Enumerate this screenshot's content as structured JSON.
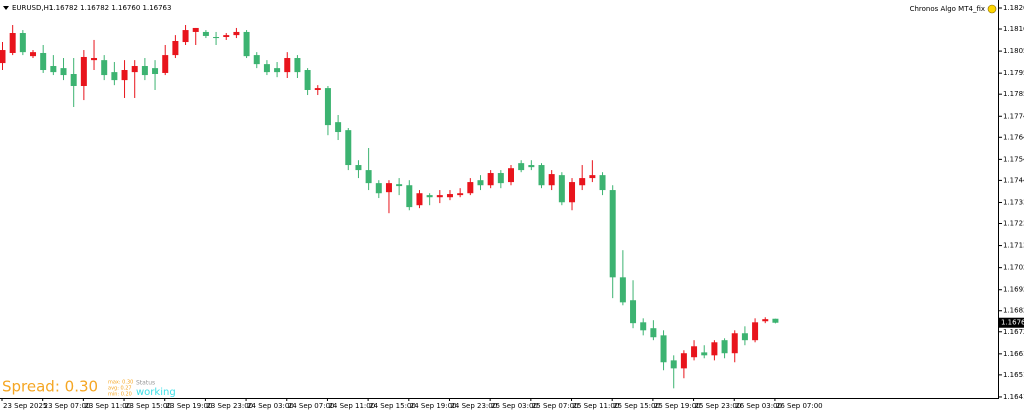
{
  "chart_data": {
    "type": "candlestick",
    "symbol": "EURUSD,H1",
    "ohlc_text": "1.16782 1.16782 1.16760 1.16763",
    "indicator": "Chronos Algo MT4_fix",
    "categories": [
      "23 Sep 2025",
      null,
      null,
      null,
      "23 Sep 07:00",
      null,
      null,
      null,
      "23 Sep 11:00",
      null,
      null,
      null,
      "23 Sep 15:00",
      null,
      null,
      null,
      "23 Sep 19:00",
      null,
      null,
      null,
      "23 Sep 23:00",
      null,
      null,
      null,
      "24 Sep 03:00",
      null,
      null,
      null,
      "24 Sep 07:00",
      null,
      null,
      null,
      "24 Sep 11:00",
      null,
      null,
      null,
      "24 Sep 15:00",
      null,
      null,
      null,
      "24 Sep 19:00",
      null,
      null,
      null,
      "24 Sep 23:00",
      null,
      null,
      null,
      "25 Sep 03:00",
      null,
      null,
      null,
      "25 Sep 07:00",
      null,
      null,
      null,
      "25 Sep 11:00",
      null,
      null,
      null,
      "25 Sep 15:00",
      null,
      null,
      null,
      "25 Sep 19:00",
      null,
      null,
      null,
      "25 Sep 23:00",
      null,
      null,
      null,
      "26 Sep 03:00",
      null,
      null,
      null,
      "26 Sep 07:00"
    ],
    "open": [
      1.17998,
      1.18046,
      1.18141,
      1.18031,
      1.18046,
      1.17984,
      1.17974,
      1.17946,
      1.17889,
      1.18012,
      1.18012,
      1.17955,
      1.17917,
      1.17955,
      1.17984,
      1.17974,
      1.17951,
      1.18036,
      1.18098,
      1.18146,
      1.18146,
      1.18122,
      1.18122,
      1.18131,
      1.18146,
      1.18036,
      1.17993,
      1.17974,
      1.17955,
      1.18022,
      1.17965,
      1.1787,
      1.17879,
      1.17717,
      1.17679,
      1.17513,
      1.17489,
      1.17427,
      1.17384,
      1.17422,
      1.17417,
      1.17322,
      1.1737,
      1.1736,
      1.1736,
      1.1737,
      1.17379,
      1.17441,
      1.17417,
      1.17475,
      1.17432,
      1.17522,
      1.17513,
      1.17513,
      1.17417,
      1.17465,
      1.17336,
      1.17417,
      1.17451,
      1.17465,
      1.17394,
      1.16979,
      1.1687,
      1.16765,
      1.16737,
      1.16703,
      1.16584,
      1.16546,
      1.16599,
      1.16622,
      1.16608,
      1.1668,
      1.16618,
      1.16713,
      1.1668,
      1.1677,
      1.16782
    ],
    "high": [
      1.18098,
      1.18179,
      1.18155,
      1.1806,
      1.18084,
      1.18036,
      1.18022,
      1.18022,
      1.1806,
      1.18108,
      1.18036,
      1.18003,
      1.18012,
      1.18012,
      1.18022,
      1.18012,
      1.18084,
      1.18131,
      1.18179,
      1.18165,
      1.18155,
      1.18146,
      1.18141,
      1.18165,
      1.18155,
      1.1805,
      1.18012,
      1.18003,
      1.1805,
      1.18036,
      1.17974,
      1.17893,
      1.17889,
      1.17751,
      1.17689,
      1.17536,
      1.17594,
      1.17441,
      1.17441,
      1.17451,
      1.17441,
      1.17394,
      1.17379,
      1.17394,
      1.17394,
      1.17403,
      1.17451,
      1.17465,
      1.17489,
      1.17489,
      1.17513,
      1.17536,
      1.17536,
      1.17522,
      1.17489,
      1.17479,
      1.17451,
      1.17513,
      1.17536,
      1.17479,
      1.17417,
      1.17108,
      1.16965,
      1.16784,
      1.16775,
      1.16727,
      1.16608,
      1.16632,
      1.1668,
      1.16656,
      1.1668,
      1.16689,
      1.16727,
      1.16746,
      1.16784,
      1.16789,
      1.16782
    ],
    "low": [
      1.17965,
      1.18036,
      1.18036,
      1.18022,
      1.17951,
      1.17941,
      1.17917,
      1.17789,
      1.17822,
      1.17965,
      1.17917,
      1.17893,
      1.17832,
      1.17832,
      1.17917,
      1.1787,
      1.17941,
      1.18022,
      1.18084,
      1.18084,
      1.18117,
      1.18084,
      1.18108,
      1.18117,
      1.18022,
      1.17974,
      1.17941,
      1.17931,
      1.17927,
      1.17927,
      1.17846,
      1.17846,
      1.17655,
      1.17632,
      1.17489,
      1.17451,
      1.17394,
      1.17356,
      1.17284,
      1.1737,
      1.17298,
      1.17308,
      1.17322,
      1.17332,
      1.17346,
      1.1736,
      1.1737,
      1.17394,
      1.17403,
      1.17403,
      1.17417,
      1.17479,
      1.17489,
      1.17403,
      1.17394,
      1.17322,
      1.17298,
      1.17394,
      1.17432,
      1.1737,
      1.1688,
      1.16846,
      1.16737,
      1.16703,
      1.1668,
      1.16537,
      1.16451,
      1.16499,
      1.16584,
      1.16594,
      1.16584,
      1.16594,
      1.16575,
      1.16656,
      1.1667,
      1.16761,
      1.1676
    ],
    "close": [
      1.1806,
      1.18141,
      1.1805,
      1.1805,
      1.17965,
      1.17955,
      1.17941,
      1.17889,
      1.18027,
      1.18022,
      1.17941,
      1.17917,
      1.17965,
      1.17984,
      1.17941,
      1.17946,
      1.18036,
      1.18103,
      1.18155,
      1.18165,
      1.18127,
      1.18117,
      1.18131,
      1.18146,
      1.18031,
      1.17993,
      1.17955,
      1.17955,
      1.18022,
      1.17955,
      1.1787,
      1.17879,
      1.17703,
      1.1767,
      1.17513,
      1.17489,
      1.17427,
      1.17379,
      1.17427,
      1.17413,
      1.17313,
      1.17379,
      1.1736,
      1.1737,
      1.17375,
      1.17379,
      1.17432,
      1.17417,
      1.17475,
      1.17427,
      1.17498,
      1.17489,
      1.17503,
      1.17417,
      1.1747,
      1.17336,
      1.17432,
      1.17451,
      1.17465,
      1.17394,
      1.16979,
      1.1686,
      1.16761,
      1.16727,
      1.16694,
      1.16575,
      1.16546,
      1.16618,
      1.16651,
      1.16608,
      1.1667,
      1.16618,
      1.16713,
      1.1668,
      1.16765,
      1.1678,
      1.16763
    ],
    "up_color": "#e8141c",
    "down_color": "#3cb371",
    "current_price": 1.16763,
    "ylim": [
      1.16405,
      1.18298
    ],
    "yticks": [
      {
        "value": 1.1826,
        "label": "1.18260"
      },
      {
        "value": 1.1816,
        "label": "1.18160"
      },
      {
        "value": 1.18055,
        "label": "1.18055"
      },
      {
        "value": 1.1795,
        "label": "1.17950"
      },
      {
        "value": 1.1785,
        "label": "1.17850"
      },
      {
        "value": 1.17745,
        "label": "1.17745"
      },
      {
        "value": 1.17645,
        "label": "1.17645"
      },
      {
        "value": 1.1754,
        "label": "1.17540"
      },
      {
        "value": 1.1744,
        "label": "1.17440"
      },
      {
        "value": 1.17335,
        "label": "1.17335"
      },
      {
        "value": 1.17235,
        "label": "1.17235"
      },
      {
        "value": 1.1713,
        "label": "1.17130"
      },
      {
        "value": 1.17025,
        "label": "1.17025"
      },
      {
        "value": 1.1692,
        "label": "1.16920"
      },
      {
        "value": 1.1682,
        "label": "1.16820"
      },
      {
        "value": 1.1672,
        "label": "1.16720"
      },
      {
        "value": 1.16615,
        "label": "1.16615"
      },
      {
        "value": 1.16515,
        "label": "1.16515"
      },
      {
        "value": 1.1641,
        "label": "1.16410"
      }
    ],
    "spread_panel": {
      "spread": "Spread: 0.30",
      "max": "max: 0.30",
      "avg": "avg: 0.27",
      "min": "min: 0.20",
      "status_label": "Status",
      "status": "working"
    }
  }
}
